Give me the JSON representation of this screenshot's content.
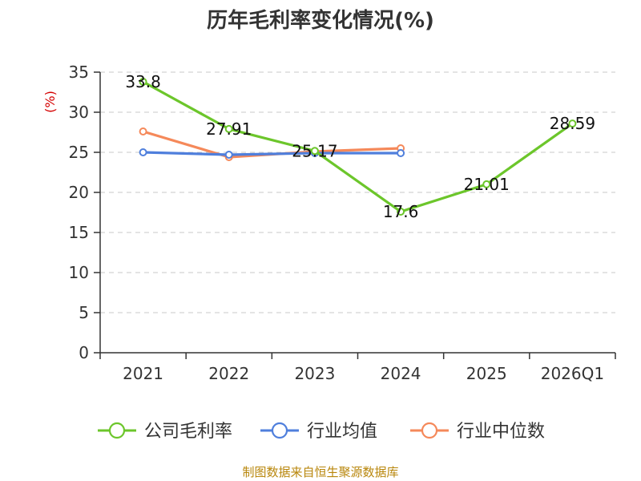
{
  "chart_data": {
    "type": "line",
    "title": "历年毛利率变化情况(%)",
    "ylabel": "(%)",
    "xlabel": "",
    "categories": [
      "2021",
      "2022",
      "2023",
      "2024",
      "2025",
      "2026Q1"
    ],
    "ylim": [
      0,
      35
    ],
    "yticks": [
      0,
      5,
      10,
      15,
      20,
      25,
      30,
      35
    ],
    "grid": true,
    "legend_position": "bottom",
    "series": [
      {
        "name": "公司毛利率",
        "color": "#6cc62b",
        "values": [
          33.8,
          27.91,
          25.17,
          17.6,
          21.01,
          28.59
        ],
        "labels": [
          "33.8",
          "27.91",
          "25.17",
          "17.6",
          "21.01",
          "28.59"
        ]
      },
      {
        "name": "行业均值",
        "color": "#4f7fdc",
        "values": [
          25.0,
          24.7,
          24.9,
          24.9,
          null,
          null
        ]
      },
      {
        "name": "行业中位数",
        "color": "#f5895a",
        "values": [
          27.6,
          24.4,
          25.1,
          25.5,
          null,
          null
        ]
      }
    ]
  },
  "footer": {
    "source": "制图数据来自恒生聚源数据库"
  }
}
